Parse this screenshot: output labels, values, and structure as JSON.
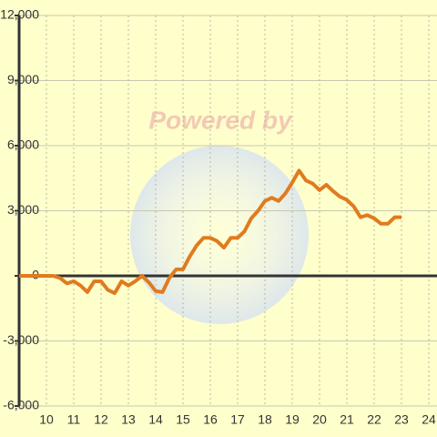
{
  "chart_data": {
    "type": "line",
    "watermark": "Powered by",
    "x": [
      9,
      9.25,
      9.5,
      9.75,
      10,
      10.25,
      10.5,
      10.75,
      11,
      11.25,
      11.5,
      11.75,
      12,
      12.25,
      12.5,
      12.75,
      13,
      13.25,
      13.5,
      13.75,
      14,
      14.25,
      14.5,
      14.75,
      15,
      15.25,
      15.5,
      15.75,
      16,
      16.25,
      16.5,
      16.75,
      17,
      17.25,
      17.5,
      17.75,
      18,
      18.25,
      18.5,
      18.75,
      19,
      19.25,
      19.5,
      19.75,
      20,
      20.25,
      20.5,
      20.75,
      21,
      21.25,
      21.5,
      21.75,
      22,
      22.25,
      22.5,
      22.75,
      23
    ],
    "series": [
      {
        "color": "#e07b20",
        "values": [
          0,
          0,
          0,
          0,
          0,
          0,
          -100,
          -350,
          -250,
          -450,
          -750,
          -250,
          -250,
          -650,
          -800,
          -250,
          -450,
          -250,
          0,
          -300,
          -700,
          -750,
          -100,
          300,
          300,
          900,
          1400,
          1750,
          1750,
          1600,
          1300,
          1750,
          1750,
          2050,
          2650,
          3000,
          3450,
          3600,
          3450,
          3800,
          4300,
          4850,
          4400,
          4250,
          3950,
          4200,
          3900,
          3650,
          3500,
          3200,
          2700,
          2800,
          2650,
          2400,
          2400,
          2700,
          2700
        ]
      }
    ],
    "xlim": [
      9,
      24.3
    ],
    "xticks": [
      10,
      11,
      12,
      13,
      14,
      15,
      16,
      17,
      18,
      19,
      20,
      21,
      22,
      23,
      24
    ],
    "ylim": [
      -6000,
      12000
    ],
    "yticks": [
      {
        "value": -6000,
        "label": "-6,000"
      },
      {
        "value": -3000,
        "label": "-3,000"
      },
      0,
      {
        "value": 3000,
        "label": "3,000"
      },
      {
        "value": 6000,
        "label": "6,000"
      },
      {
        "value": 9000,
        "label": "9,000"
      },
      {
        "value": 12000,
        "label": "12,000"
      }
    ],
    "grid": true
  }
}
